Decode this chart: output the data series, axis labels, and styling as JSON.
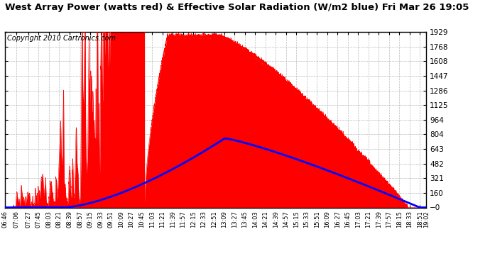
{
  "title": "West Array Power (watts red) & Effective Solar Radiation (W/m2 blue) Fri Mar 26 19:05",
  "copyright": "Copyright 2010 Cartronics.com",
  "background_color": "#ffffff",
  "plot_bg_color": "#ffffff",
  "ymin": -0.3,
  "ymax": 1929.3,
  "yticks": [
    -0.3,
    160.5,
    321.3,
    482.1,
    642.9,
    803.7,
    964.5,
    1125.3,
    1286.1,
    1446.9,
    1607.7,
    1768.5,
    1929.3
  ],
  "xtick_labels": [
    "06:46",
    "07:06",
    "07:27",
    "07:45",
    "08:03",
    "08:21",
    "08:39",
    "08:57",
    "09:15",
    "09:33",
    "09:51",
    "10:09",
    "10:27",
    "10:45",
    "11:03",
    "11:21",
    "11:39",
    "11:57",
    "12:15",
    "12:33",
    "12:51",
    "13:09",
    "13:27",
    "13:45",
    "14:03",
    "14:21",
    "14:39",
    "14:57",
    "15:15",
    "15:33",
    "15:51",
    "16:09",
    "16:27",
    "16:45",
    "17:03",
    "17:21",
    "17:39",
    "17:57",
    "18:15",
    "18:33",
    "18:51",
    "19:02"
  ],
  "red_color": "#ff0000",
  "blue_color": "#0000ff",
  "grid_color": "#aaaaaa",
  "title_fontsize": 9.5,
  "copyright_fontsize": 7
}
